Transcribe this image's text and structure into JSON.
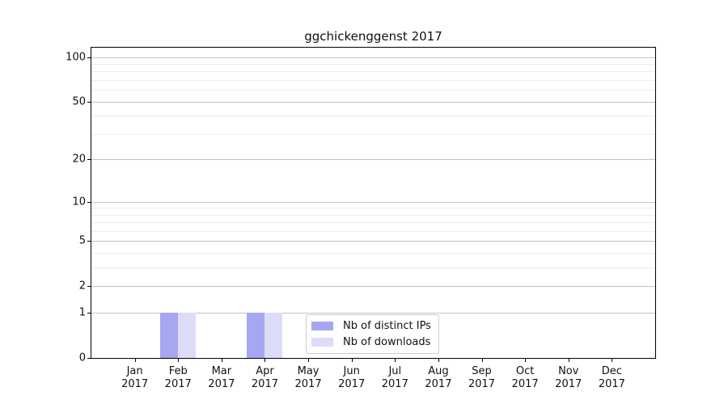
{
  "chart_data": {
    "type": "bar",
    "title": "ggchickenggenst 2017",
    "categories": [
      "Jan",
      "Feb",
      "Mar",
      "Apr",
      "May",
      "Jun",
      "Jul",
      "Aug",
      "Sep",
      "Oct",
      "Nov",
      "Dec"
    ],
    "year": "2017",
    "series": [
      {
        "name": "Nb of distinct IPs",
        "color": "#a6a6f1",
        "values": [
          0,
          1,
          0,
          1,
          0,
          0,
          0,
          0,
          0,
          0,
          0,
          0
        ]
      },
      {
        "name": "Nb of downloads",
        "color": "#dcdcf8",
        "values": [
          0,
          1,
          0,
          1,
          0,
          0,
          0,
          0,
          0,
          0,
          0,
          0
        ]
      }
    ],
    "yscale": "log1p",
    "ylim": [
      0,
      116
    ],
    "yticks": [
      0,
      1,
      2,
      5,
      10,
      20,
      50,
      100
    ],
    "yticks_minor": [
      3,
      4,
      6,
      7,
      8,
      9,
      30,
      40,
      60,
      70,
      80,
      90
    ],
    "grid": "horizontal",
    "legend_position": "lower-center",
    "colors": {
      "axis": "#000000",
      "grid_major": "#c3c3c3",
      "grid_minor": "#ececec",
      "text": "#111111",
      "legend_border": "#cccccc"
    }
  }
}
